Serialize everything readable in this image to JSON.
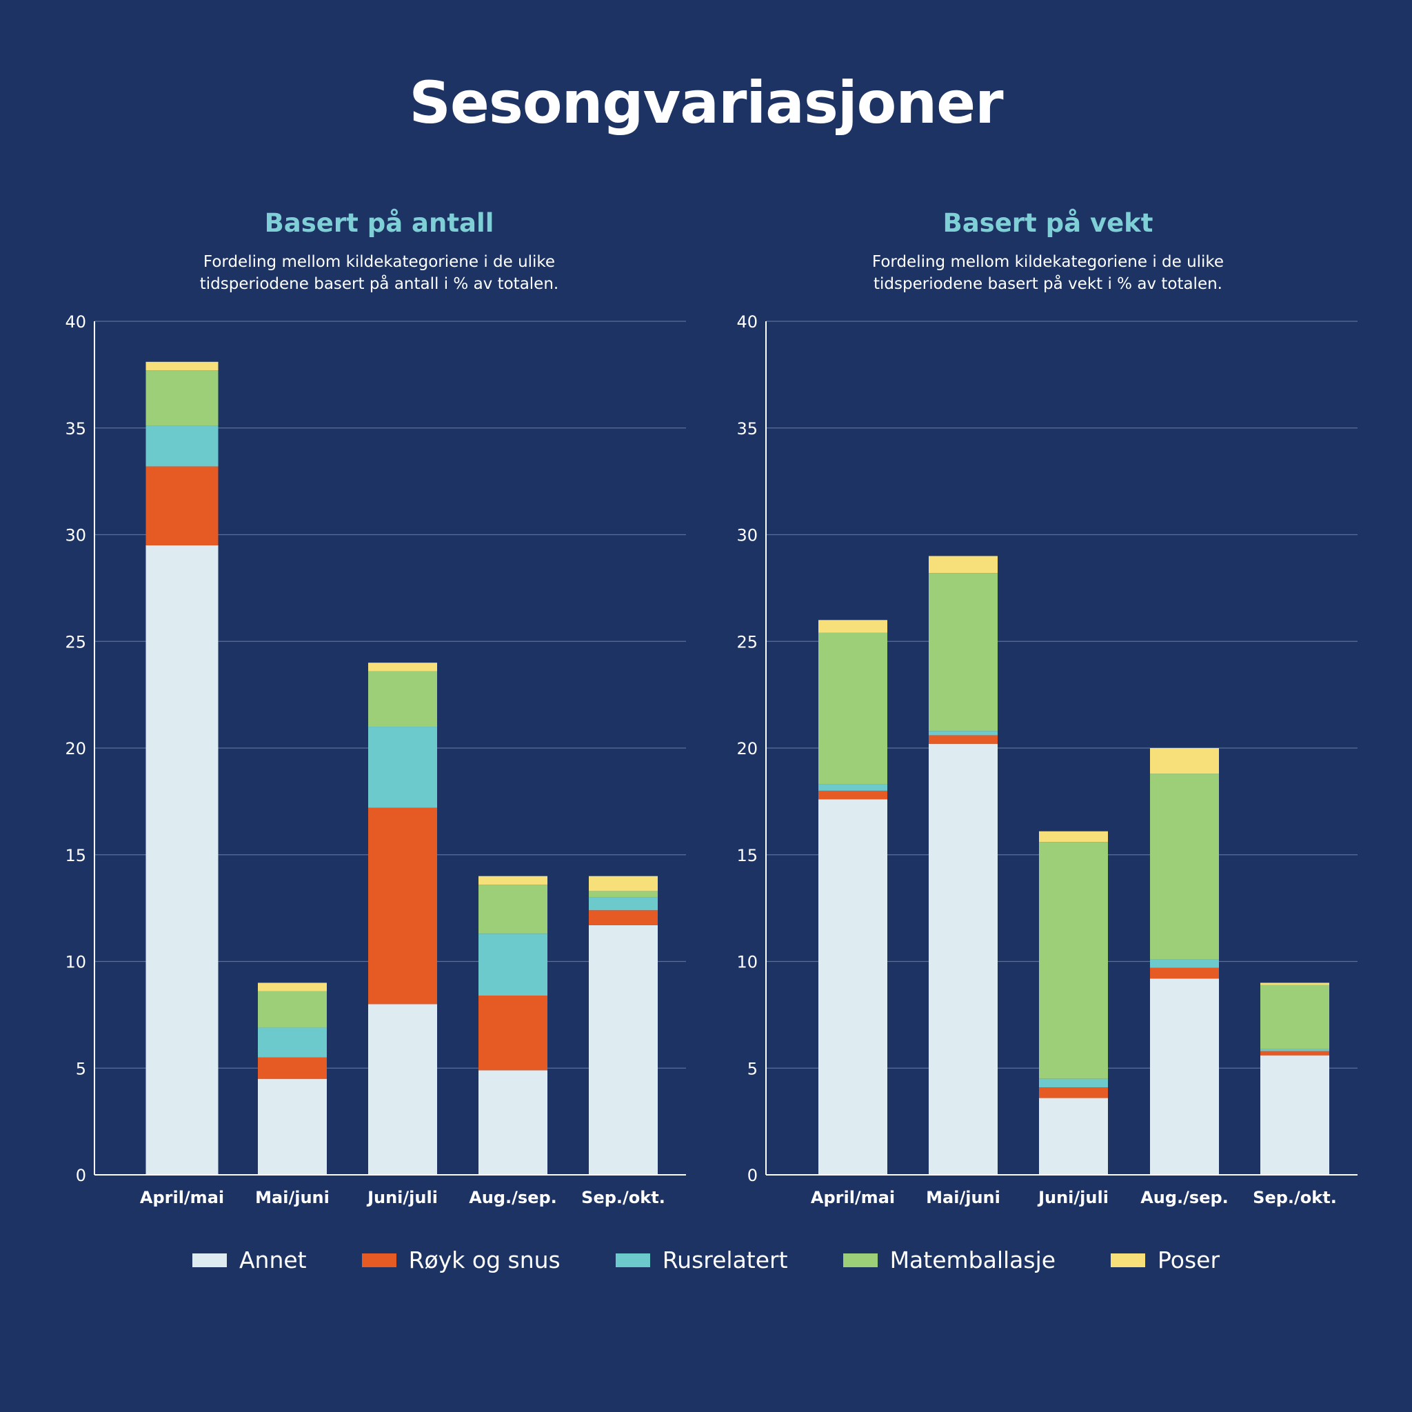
{
  "title": "Sesongvariasjoner",
  "colors": {
    "Annet": "#deebf0",
    "Røyk og snus": "#e65a24",
    "Rusrelatert": "#6cc9cc",
    "Matemballasje": "#9dce78",
    "Poser": "#f7e07a",
    "background": "#1c3363",
    "accent": "#7fcfd6"
  },
  "legend": [
    "Annet",
    "Røyk og snus",
    "Rusrelatert",
    "Matemballasje",
    "Poser"
  ],
  "chart_data": [
    {
      "type": "bar",
      "stacked": true,
      "title": "Basert på antall",
      "subtitle": [
        "Fordeling mellom kildekategoriene i de ulike",
        "tidsperiodene basert på antall i % av totalen."
      ],
      "categories": [
        "April/mai",
        "Mai/juni",
        "Juni/juli",
        "Aug./sep.",
        "Sep./okt."
      ],
      "ylim": [
        0,
        40
      ],
      "yticks": [
        0,
        5,
        10,
        15,
        20,
        25,
        30,
        35,
        40
      ],
      "grid": true,
      "series": [
        {
          "name": "Annet",
          "values": [
            29.5,
            4.5,
            8.0,
            4.9,
            11.7
          ]
        },
        {
          "name": "Røyk og snus",
          "values": [
            3.7,
            1.0,
            9.2,
            3.5,
            0.7
          ]
        },
        {
          "name": "Rusrelatert",
          "values": [
            1.9,
            1.4,
            3.8,
            2.9,
            0.6
          ]
        },
        {
          "name": "Matemballasje",
          "values": [
            2.6,
            1.7,
            2.6,
            2.3,
            0.3
          ]
        },
        {
          "name": "Poser",
          "values": [
            0.4,
            0.4,
            0.4,
            0.4,
            0.7
          ]
        }
      ]
    },
    {
      "type": "bar",
      "stacked": true,
      "title": "Basert på vekt",
      "subtitle": [
        "Fordeling mellom kildekategoriene i de ulike",
        "tidsperiodene basert på vekt i % av totalen."
      ],
      "categories": [
        "April/mai",
        "Mai/juni",
        "Juni/juli",
        "Aug./sep.",
        "Sep./okt."
      ],
      "ylim": [
        0,
        40
      ],
      "yticks": [
        0,
        5,
        10,
        15,
        20,
        25,
        30,
        35,
        40
      ],
      "grid": true,
      "series": [
        {
          "name": "Annet",
          "values": [
            17.6,
            20.2,
            3.6,
            9.2,
            5.6
          ]
        },
        {
          "name": "Røyk og snus",
          "values": [
            0.4,
            0.4,
            0.5,
            0.5,
            0.2
          ]
        },
        {
          "name": "Rusrelatert",
          "values": [
            0.3,
            0.2,
            0.4,
            0.4,
            0.1
          ]
        },
        {
          "name": "Matemballasje",
          "values": [
            7.1,
            7.4,
            11.1,
            8.7,
            3.0
          ]
        },
        {
          "name": "Poser",
          "values": [
            0.6,
            0.8,
            0.5,
            1.2,
            0.1
          ]
        }
      ]
    }
  ]
}
